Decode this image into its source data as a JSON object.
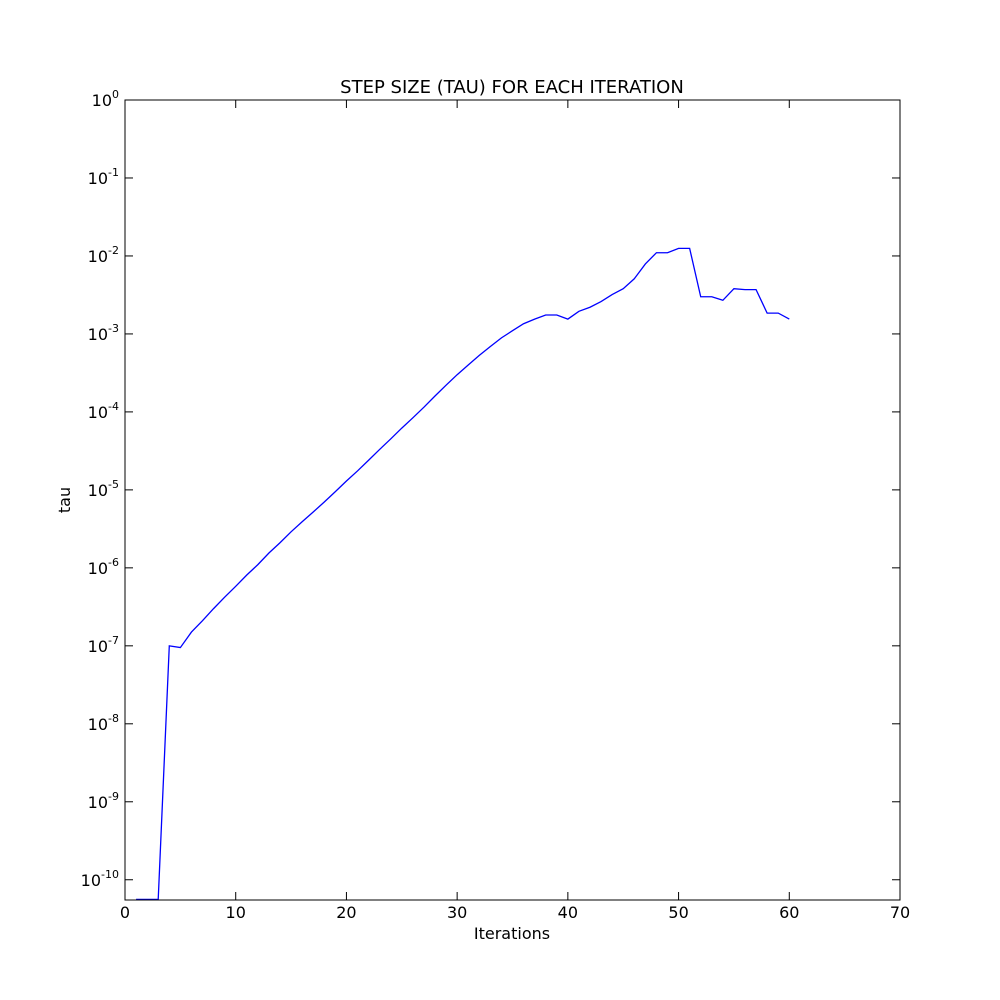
{
  "chart_data": {
    "type": "line",
    "title": "STEP SIZE (TAU) FOR EACH ITERATION",
    "x_label": "Iterations",
    "y_label": "tau",
    "x": [
      1,
      2,
      3,
      4,
      5,
      6,
      7,
      8,
      9,
      10,
      11,
      12,
      13,
      14,
      15,
      16,
      17,
      18,
      19,
      20,
      21,
      22,
      23,
      24,
      25,
      26,
      27,
      28,
      29,
      30,
      31,
      32,
      33,
      34,
      35,
      36,
      37,
      38,
      39,
      40,
      41,
      42,
      43,
      44,
      45,
      46,
      47,
      48,
      49,
      50,
      51,
      52,
      53,
      54,
      55,
      56,
      57,
      58,
      59,
      60
    ],
    "values": [
      5.6e-11,
      5.6e-11,
      5.6e-11,
      1e-07,
      9.5e-08,
      1.5e-07,
      2.1e-07,
      3e-07,
      4.2e-07,
      5.8e-07,
      8.1e-07,
      1.1e-06,
      1.55e-06,
      2.1e-06,
      2.9e-06,
      3.9e-06,
      5.2e-06,
      7e-06,
      9.5e-06,
      1.3e-05,
      1.75e-05,
      2.4e-05,
      3.3e-05,
      4.5e-05,
      6.2e-05,
      8.4e-05,
      0.000115,
      0.00016,
      0.00022,
      0.0003,
      0.0004,
      0.00053,
      0.00069,
      0.00089,
      0.0011,
      0.00135,
      0.00155,
      0.00175,
      0.00175,
      0.00155,
      0.00195,
      0.0022,
      0.0026,
      0.0032,
      0.0038,
      0.0051,
      0.0079,
      0.011,
      0.011,
      0.0125,
      0.0125,
      0.003,
      0.003,
      0.0027,
      0.0038,
      0.0037,
      0.0037,
      0.00185,
      0.00185,
      0.00155
    ],
    "color": "#0000ff",
    "xlim": [
      0,
      70
    ],
    "xticks": [
      0,
      10,
      20,
      30,
      40,
      50,
      60,
      70
    ],
    "ylim": [
      5.5e-11,
      1
    ],
    "y_scale": "log",
    "yticks": [
      {
        "value": 1,
        "label": "10^0"
      },
      {
        "value": 0.1,
        "label": "10^-1"
      },
      {
        "value": 0.01,
        "label": "10^-2"
      },
      {
        "value": 0.001,
        "label": "10^-3"
      },
      {
        "value": 0.0001,
        "label": "10^-4"
      },
      {
        "value": 1e-05,
        "label": "10^-5"
      },
      {
        "value": 1e-06,
        "label": "10^-6"
      },
      {
        "value": 1e-07,
        "label": "10^-7"
      },
      {
        "value": 1e-08,
        "label": "10^-8"
      },
      {
        "value": 1e-09,
        "label": "10^-9"
      },
      {
        "value": 1e-10,
        "label": "10^-10"
      }
    ],
    "grid": false
  }
}
